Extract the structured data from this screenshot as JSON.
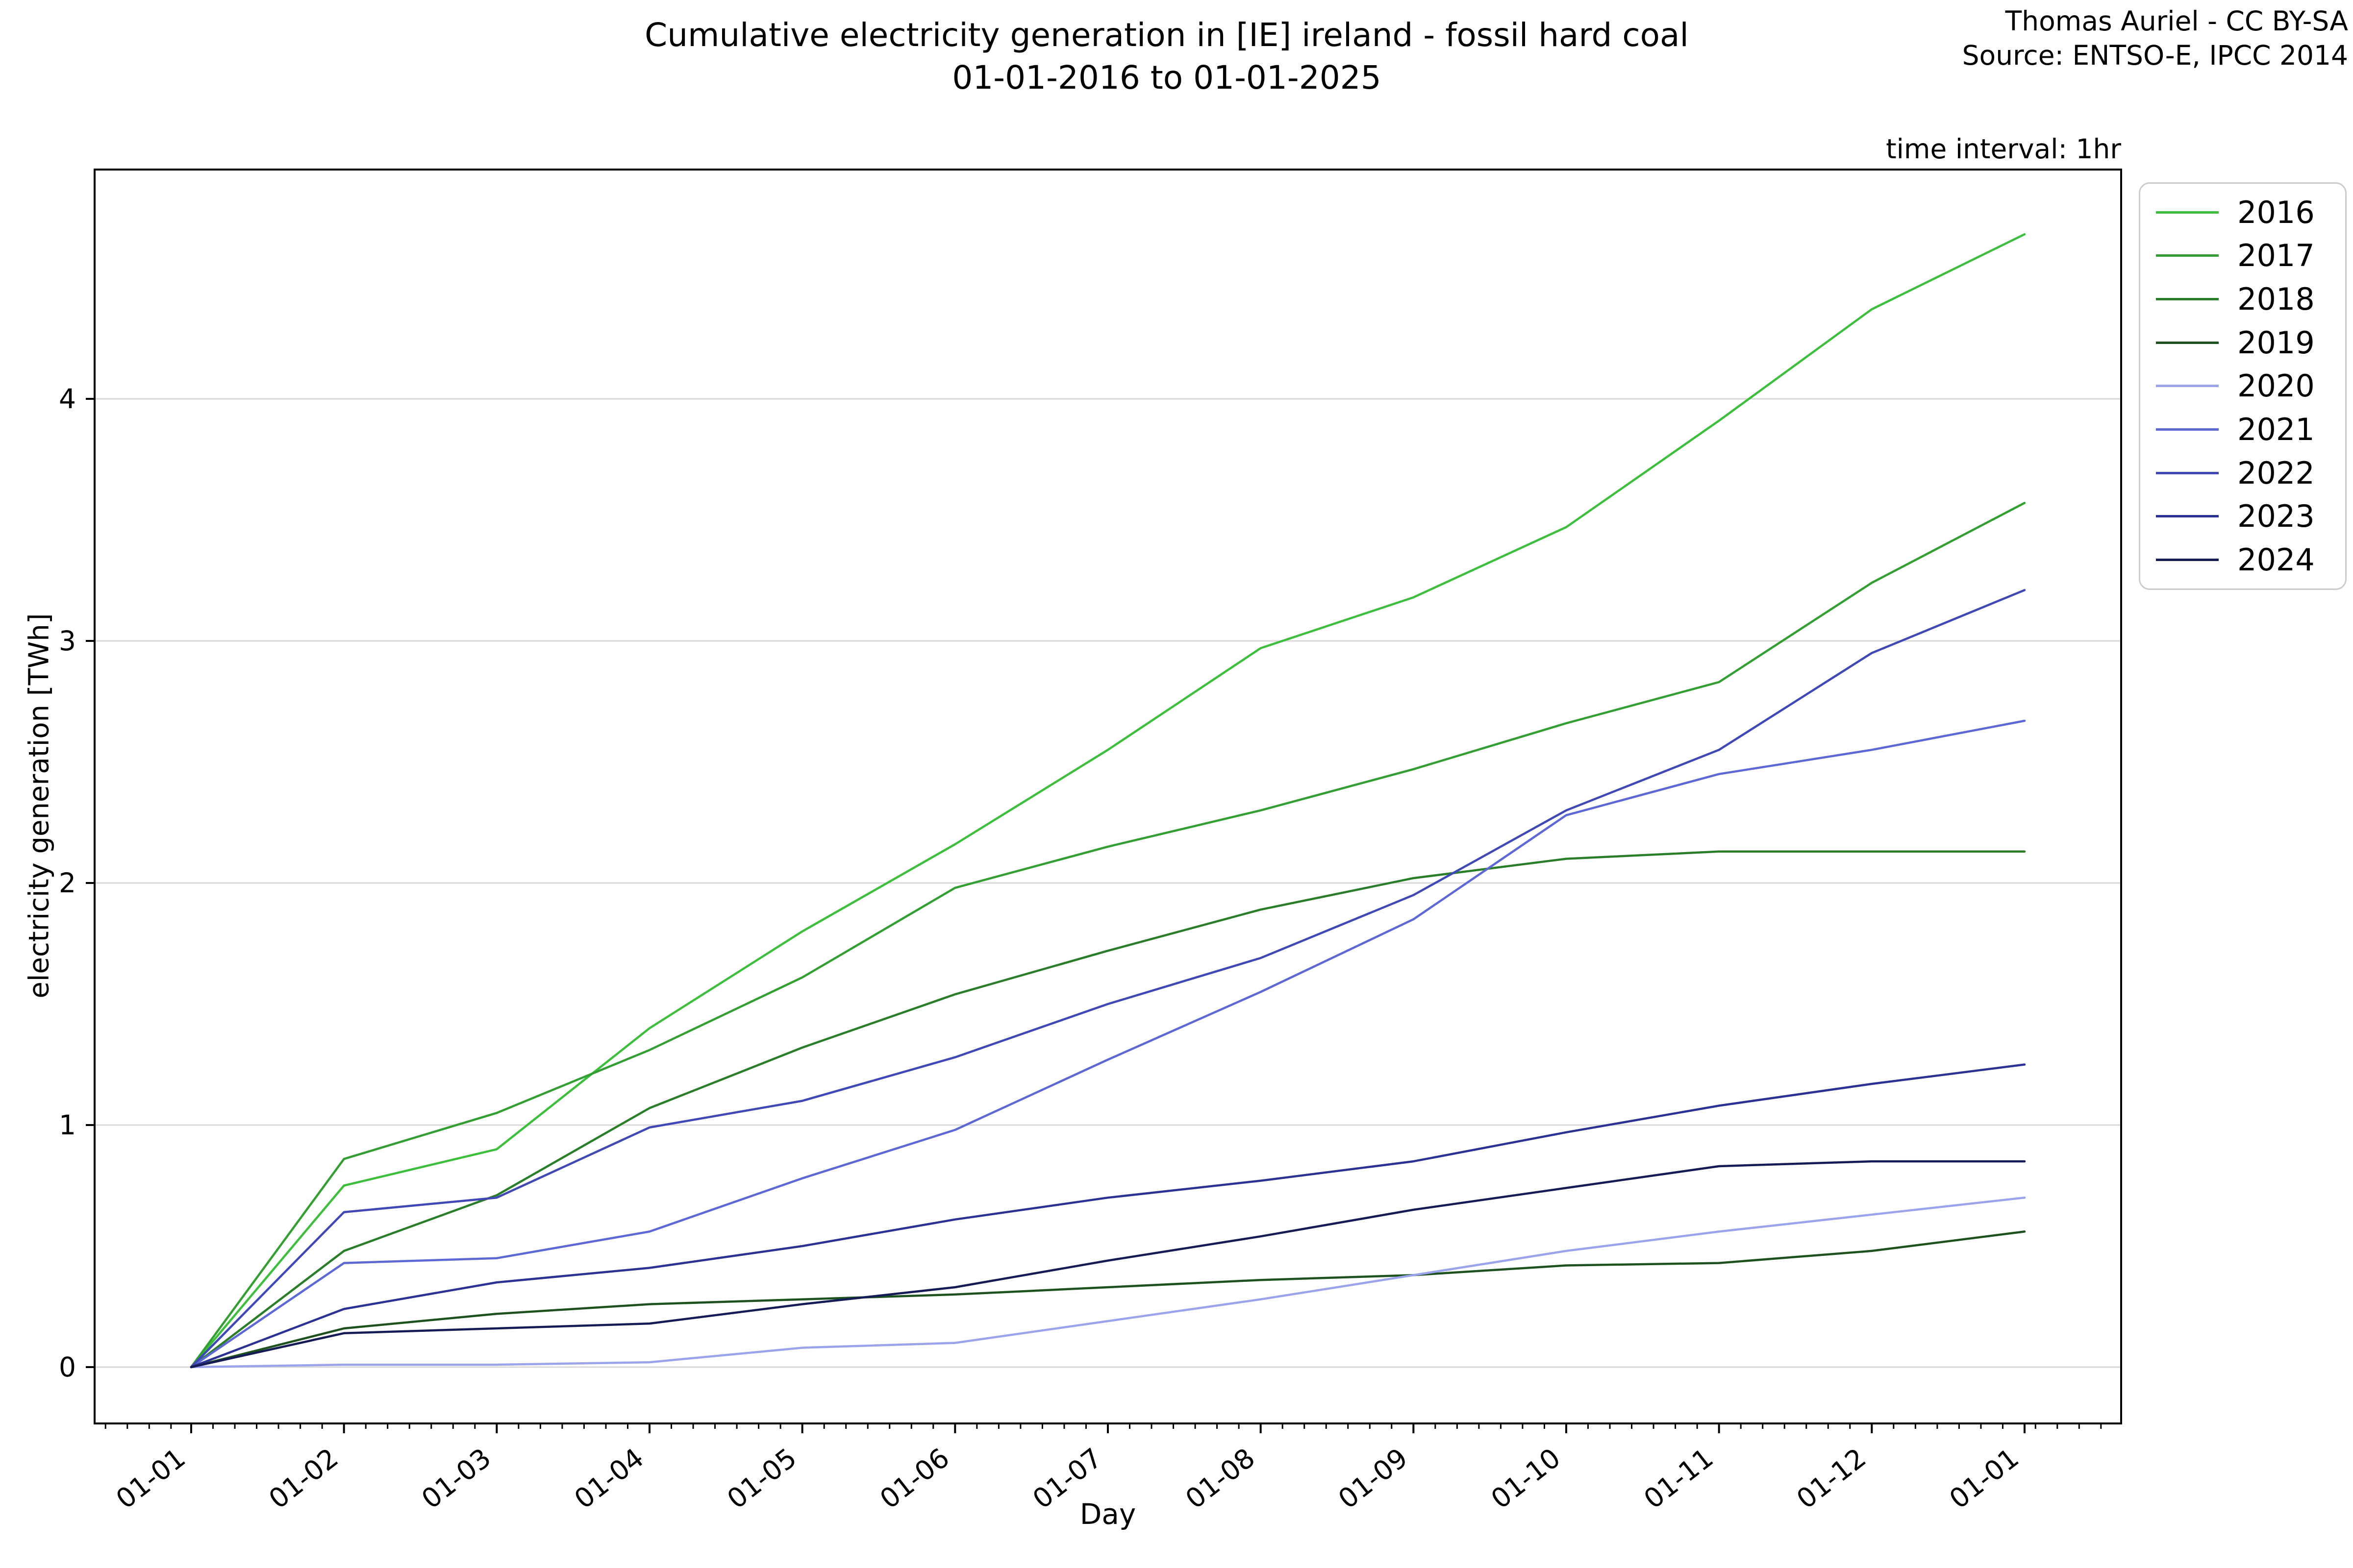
{
  "annotations": {
    "credit": "Thomas Auriel - CC BY-SA",
    "source": "Source: ENTSO-E, IPCC 2014",
    "time_interval": "time interval: 1hr"
  },
  "chart_data": {
    "type": "line",
    "title": "Cumulative electricity generation in [IE] ireland - fossil hard coal",
    "subtitle": "01-01-2016 to 01-01-2025",
    "xlabel": "Day",
    "ylabel": "electricity generation [TWh]",
    "x_ticklabels": [
      "01-01",
      "01-02",
      "01-03",
      "01-04",
      "01-05",
      "01-06",
      "01-07",
      "01-08",
      "01-09",
      "01-10",
      "01-11",
      "01-12",
      "01-01"
    ],
    "y_ticks": [
      0,
      1,
      2,
      3,
      4
    ],
    "ylim": [
      -0.23,
      4.93
    ],
    "grid": "horizontal",
    "legend_position": "outside upper right",
    "legend_title": "",
    "series": [
      {
        "name": "2016",
        "color": "#3dbe3d",
        "values": [
          0,
          0.75,
          0.9,
          1.4,
          1.8,
          2.16,
          2.55,
          2.97,
          3.18,
          3.47,
          3.91,
          4.37,
          4.68
        ]
      },
      {
        "name": "2017",
        "color": "#339f33",
        "values": [
          0,
          0.86,
          1.05,
          1.31,
          1.61,
          1.98,
          2.15,
          2.3,
          2.47,
          2.66,
          2.83,
          3.24,
          3.57
        ]
      },
      {
        "name": "2018",
        "color": "#2a7e2a",
        "values": [
          0,
          0.48,
          0.71,
          1.07,
          1.32,
          1.54,
          1.72,
          1.89,
          2.02,
          2.1,
          2.13,
          2.13,
          2.13
        ]
      },
      {
        "name": "2019",
        "color": "#1d511d",
        "values": [
          0,
          0.16,
          0.22,
          0.26,
          0.28,
          0.3,
          0.33,
          0.36,
          0.38,
          0.42,
          0.43,
          0.48,
          0.56
        ]
      },
      {
        "name": "2020",
        "color": "#9ba3ea",
        "values": [
          0,
          0.01,
          0.01,
          0.02,
          0.08,
          0.1,
          0.19,
          0.28,
          0.38,
          0.48,
          0.56,
          0.63,
          0.7
        ]
      },
      {
        "name": "2021",
        "color": "#5d68d4",
        "values": [
          0,
          0.43,
          0.45,
          0.56,
          0.78,
          0.98,
          1.27,
          1.55,
          1.85,
          2.28,
          2.45,
          2.55,
          2.67
        ]
      },
      {
        "name": "2022",
        "color": "#3f48b5",
        "values": [
          0,
          0.64,
          0.7,
          0.99,
          1.1,
          1.28,
          1.5,
          1.69,
          1.95,
          2.3,
          2.55,
          2.95,
          3.21
        ]
      },
      {
        "name": "2023",
        "color": "#2b3293",
        "values": [
          0,
          0.24,
          0.35,
          0.41,
          0.5,
          0.61,
          0.7,
          0.77,
          0.85,
          0.97,
          1.08,
          1.17,
          1.25
        ]
      },
      {
        "name": "2024",
        "color": "#151b54",
        "values": [
          0,
          0.14,
          0.16,
          0.18,
          0.26,
          0.33,
          0.44,
          0.54,
          0.65,
          0.74,
          0.83,
          0.85,
          0.85
        ]
      }
    ]
  }
}
